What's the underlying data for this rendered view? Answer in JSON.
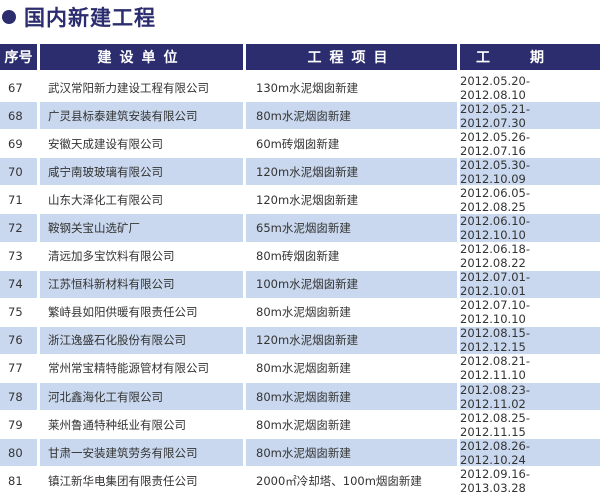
{
  "title": "国内新建工程",
  "colors": {
    "header_bg": "#2b2d6e",
    "alt_row": "#c9d8ee"
  },
  "headers": [
    "序号",
    "建设单位",
    "工程项目",
    "工期"
  ],
  "rows": [
    {
      "no": "67",
      "unit": "武汉常阳新力建设工程有限公司",
      "project": "130m水泥烟囱新建",
      "period": "2012.05.20-2012.08.10"
    },
    {
      "no": "68",
      "unit": "广灵县标泰建筑安装有限公司",
      "project": "80m水泥烟囱新建",
      "period": "2012.05.21-2012.07.30"
    },
    {
      "no": "69",
      "unit": "安徽天成建设有限公司",
      "project": "60m砖烟囱新建",
      "period": "2012.05.26-2012.07.16"
    },
    {
      "no": "70",
      "unit": "咸宁南玻玻璃有限公司",
      "project": "120m水泥烟囱新建",
      "period": "2012.05.30-2012.10.09"
    },
    {
      "no": "71",
      "unit": "山东大泽化工有限公司",
      "project": "120m水泥烟囱新建",
      "period": "2012.06.05-2012.08.25"
    },
    {
      "no": "72",
      "unit": "鞍钢关宝山选矿厂",
      "project": "65m水泥烟囱新建",
      "period": "2012.06.10-2012.10.10"
    },
    {
      "no": "73",
      "unit": "清远加多宝饮料有限公司",
      "project": "80m砖烟囱新建",
      "period": "2012.06.18-2012.08.22"
    },
    {
      "no": "74",
      "unit": "江苏恒科新材料有限公司",
      "project": "100m水泥烟囱新建",
      "period": "2012.07.01-2012.10.01"
    },
    {
      "no": "75",
      "unit": "繁峙县如阳供暖有限责任公司",
      "project": "80m水泥烟囱新建",
      "period": "2012.07.10-2012.10.10"
    },
    {
      "no": "76",
      "unit": "浙江逸盛石化股份有限公司",
      "project": "120m水泥烟囱新建",
      "period": "2012.08.15-2012.12.15"
    },
    {
      "no": "77",
      "unit": "常州常宝精特能源管材有限公司",
      "project": "80m水泥烟囱新建",
      "period": "2012.08.21-2012.11.10"
    },
    {
      "no": "78",
      "unit": "河北鑫海化工有限公司",
      "project": "80m水泥烟囱新建",
      "period": "2012.08.23-2012.11.02"
    },
    {
      "no": "79",
      "unit": "莱州鲁通特种纸业有限公司",
      "project": "80m水泥烟囱新建",
      "period": "2012.08.25-2012.11.15"
    },
    {
      "no": "80",
      "unit": "甘肃一安装建筑劳务有限公司",
      "project": "80m水泥烟囱新建",
      "period": "2012.08.26-2012.10.24"
    },
    {
      "no": "81",
      "unit": "镇江新华电集团有限责任公司",
      "project": "2000㎡冷却塔、100m烟囱新建",
      "period": "2012.09.16-2013.03.28"
    }
  ]
}
